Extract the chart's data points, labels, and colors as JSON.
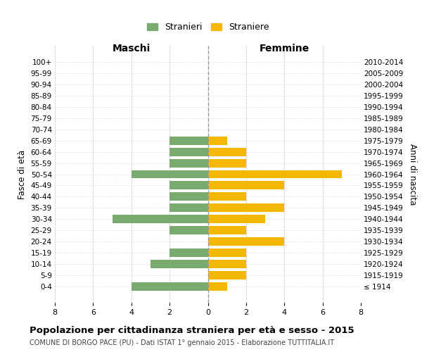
{
  "age_groups": [
    "100+",
    "95-99",
    "90-94",
    "85-89",
    "80-84",
    "75-79",
    "70-74",
    "65-69",
    "60-64",
    "55-59",
    "50-54",
    "45-49",
    "40-44",
    "35-39",
    "30-34",
    "25-29",
    "20-24",
    "15-19",
    "10-14",
    "5-9",
    "0-4"
  ],
  "birth_years": [
    "≤ 1914",
    "1915-1919",
    "1920-1924",
    "1925-1929",
    "1930-1934",
    "1935-1939",
    "1940-1944",
    "1945-1949",
    "1950-1954",
    "1955-1959",
    "1960-1964",
    "1965-1969",
    "1970-1974",
    "1975-1979",
    "1980-1984",
    "1985-1989",
    "1990-1994",
    "1995-1999",
    "2000-2004",
    "2005-2009",
    "2010-2014"
  ],
  "maschi": [
    0,
    0,
    0,
    0,
    0,
    0,
    0,
    2,
    2,
    2,
    4,
    2,
    2,
    2,
    5,
    2,
    0,
    2,
    3,
    0,
    4
  ],
  "femmine": [
    0,
    0,
    0,
    0,
    0,
    0,
    0,
    1,
    2,
    2,
    7,
    4,
    2,
    4,
    3,
    2,
    4,
    2,
    2,
    2,
    1
  ],
  "maschi_color": "#7aab6e",
  "femmine_color": "#f5b800",
  "background_color": "#ffffff",
  "grid_color": "#cccccc",
  "title": "Popolazione per cittadinanza straniera per età e sesso - 2015",
  "subtitle": "COMUNE DI BORGO PACE (PU) - Dati ISTAT 1° gennaio 2015 - Elaborazione TUTTITALIA.IT",
  "xlabel_left": "Maschi",
  "xlabel_right": "Femmine",
  "ylabel_left": "Fasce di età",
  "ylabel_right": "Anni di nascita",
  "legend_maschi": "Stranieri",
  "legend_femmine": "Straniere",
  "xlim": 8,
  "bar_height": 0.75
}
